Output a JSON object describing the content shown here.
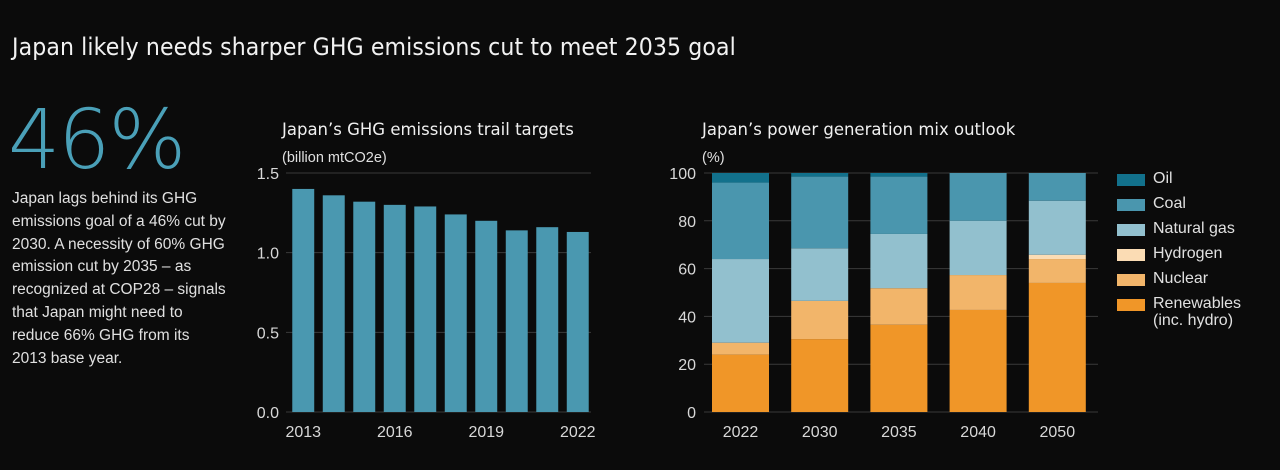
{
  "header": {
    "title": "Japan likely needs sharper GHG emissions cut to meet 2035 goal"
  },
  "highlight": {
    "stat": "46%",
    "description": "Japan lags behind its GHG emissions goal of a 46% cut by 2030. A necessity of 60% GHG emission cut by 2035 – as recognized at COP28 – signals that Japan might need to reduce 66% GHG from its 2013 base year."
  },
  "colors": {
    "background": "#0b0b0b",
    "accent": "#4aa0b8",
    "gridline": "#3a3a3a"
  },
  "chart_data": [
    {
      "type": "bar",
      "title": "Japan’s GHG emissions trail targets",
      "ylabel": "(billion mtCO2e)",
      "xlabel": "",
      "categories": [
        "2013",
        "2014",
        "2015",
        "2016",
        "2017",
        "2018",
        "2019",
        "2020",
        "2021",
        "2022"
      ],
      "x_tick_labels": [
        "2013",
        "2016",
        "2019",
        "2022"
      ],
      "values": [
        1.4,
        1.36,
        1.32,
        1.3,
        1.29,
        1.24,
        1.2,
        1.14,
        1.16,
        1.13
      ],
      "ylim": [
        0,
        1.5
      ],
      "y_ticks": [
        0.0,
        0.5,
        1.0,
        1.5
      ],
      "y_tick_labels": [
        "0.0",
        "0.5",
        "1.0",
        "1.5"
      ],
      "grid": true,
      "color": "#4a98b0"
    },
    {
      "type": "bar",
      "stacked": true,
      "title": "Japan’s power generation mix outlook",
      "ylabel": "(%)",
      "xlabel": "",
      "categories": [
        "2022",
        "2030",
        "2035",
        "2040",
        "2050"
      ],
      "ylim": [
        0,
        100
      ],
      "y_ticks": [
        0,
        20,
        40,
        60,
        80,
        100
      ],
      "y_tick_labels": [
        "0",
        "20",
        "40",
        "60",
        "80",
        "100"
      ],
      "grid": true,
      "legend_position": "right",
      "series": [
        {
          "name": "Renewables (inc. hydro)",
          "color": "#f09628",
          "values": [
            24,
            30.5,
            36.5,
            42.7,
            54
          ]
        },
        {
          "name": "Nuclear",
          "color": "#f2b56a",
          "values": [
            5,
            16,
            15.3,
            14.6,
            10
          ]
        },
        {
          "name": "Hydrogen",
          "color": "#fbdcb4",
          "values": [
            0,
            0,
            0,
            0,
            1.8
          ]
        },
        {
          "name": "Natural gas",
          "color": "#92c0ce",
          "values": [
            35,
            22,
            22.7,
            22.7,
            22.6
          ]
        },
        {
          "name": "Coal",
          "color": "#4a96ae",
          "values": [
            32,
            30,
            24,
            20,
            11.6
          ]
        },
        {
          "name": "Oil",
          "color": "#12718c",
          "values": [
            4,
            1.5,
            1.5,
            0,
            0
          ]
        }
      ],
      "legend": [
        {
          "name": "Oil",
          "color": "#12718c"
        },
        {
          "name": "Coal",
          "color": "#4a96ae"
        },
        {
          "name": "Natural gas",
          "color": "#92c0ce"
        },
        {
          "name": "Hydrogen",
          "color": "#fbdcb4"
        },
        {
          "name": "Nuclear",
          "color": "#f2b56a"
        },
        {
          "name": "Renewables",
          "sub": "(inc. hydro)",
          "color": "#f09628"
        }
      ]
    }
  ]
}
